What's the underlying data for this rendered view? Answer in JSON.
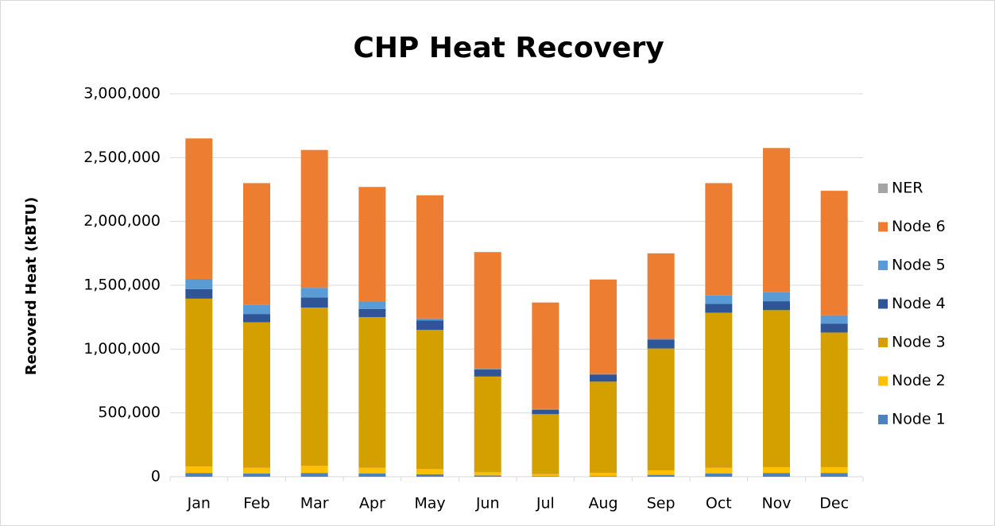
{
  "chart_data": {
    "type": "stacked_bar",
    "title": "CHP Heat Recovery",
    "y_label": "Recoverd Heat (kBTU)",
    "categories": [
      "Jan",
      "Feb",
      "Mar",
      "Apr",
      "May",
      "Jun",
      "Jul",
      "Aug",
      "Sep",
      "Oct",
      "Nov",
      "Dec"
    ],
    "series": [
      {
        "name": "Node 1",
        "color": "#4f81bd",
        "values": [
          30000,
          25000,
          30000,
          25000,
          20000,
          10000,
          5000,
          5000,
          15000,
          25000,
          30000,
          30000
        ]
      },
      {
        "name": "Node 2",
        "color": "#ffc000",
        "values": [
          50000,
          45000,
          55000,
          45000,
          40000,
          25000,
          15000,
          25000,
          35000,
          45000,
          45000,
          45000
        ]
      },
      {
        "name": "Node 3",
        "color": "#d4a000",
        "values": [
          1315000,
          1140000,
          1240000,
          1180000,
          1090000,
          750000,
          470000,
          715000,
          955000,
          1215000,
          1230000,
          1055000
        ]
      },
      {
        "name": "Node 4",
        "color": "#2f5597",
        "values": [
          75000,
          65000,
          80000,
          65000,
          75000,
          55000,
          35000,
          55000,
          70000,
          70000,
          70000,
          70000
        ]
      },
      {
        "name": "Node 5",
        "color": "#5b9bd5",
        "values": [
          80000,
          70000,
          75000,
          60000,
          15000,
          5000,
          5000,
          5000,
          5000,
          65000,
          70000,
          65000
        ]
      },
      {
        "name": "Node 6",
        "color": "#ed7d31",
        "values": [
          1100000,
          955000,
          1080000,
          895000,
          965000,
          915000,
          835000,
          740000,
          670000,
          880000,
          1130000,
          975000
        ]
      },
      {
        "name": "NER",
        "color": "#a5a5a5",
        "values": [
          0,
          0,
          0,
          0,
          0,
          0,
          0,
          0,
          0,
          0,
          0,
          0
        ]
      }
    ],
    "ylim": [
      0,
      3000000
    ],
    "yticks": [
      0,
      {
        "value": 500000,
        "label": "500,000"
      },
      {
        "value": 1000000,
        "label": "1,000,000"
      },
      {
        "value": 1500000,
        "label": "1,500,000"
      },
      {
        "value": 2000000,
        "label": "2,000,000"
      },
      {
        "value": 2500000,
        "label": "2,500,000"
      },
      {
        "value": 3000000,
        "label": "3,000,000"
      }
    ],
    "grid": true,
    "legend": "right"
  }
}
